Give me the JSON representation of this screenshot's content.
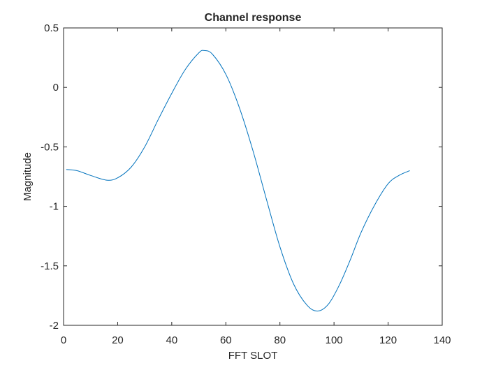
{
  "chart_data": {
    "type": "line",
    "title": "Channel response",
    "xlabel": "FFT SLOT",
    "ylabel": "Magnitude",
    "xlim": [
      0,
      140
    ],
    "ylim": [
      -2,
      0.5
    ],
    "xticks": [
      0,
      20,
      40,
      60,
      80,
      100,
      120,
      140
    ],
    "xtick_labels": [
      "0",
      "20",
      "40",
      "60",
      "80",
      "100",
      "120",
      "140"
    ],
    "yticks": [
      0.5,
      0,
      -0.5,
      -1,
      -1.5,
      -2
    ],
    "ytick_labels": [
      "0.5",
      "0",
      "-0.5",
      "-1",
      "-1.5",
      "-2"
    ],
    "grid": false,
    "line_color": "#0072BD",
    "series": [
      {
        "x": [
          1,
          5,
          10,
          16,
          20,
          25,
          30,
          35,
          40,
          45,
          50,
          52,
          55,
          60,
          65,
          70,
          75,
          80,
          85,
          90,
          94,
          98,
          102,
          106,
          110,
          115,
          120,
          124,
          128
        ],
        "y": [
          -0.69,
          -0.7,
          -0.74,
          -0.78,
          -0.76,
          -0.67,
          -0.5,
          -0.27,
          -0.05,
          0.15,
          0.29,
          0.31,
          0.28,
          0.11,
          -0.17,
          -0.53,
          -0.94,
          -1.34,
          -1.65,
          -1.83,
          -1.88,
          -1.82,
          -1.66,
          -1.45,
          -1.22,
          -0.99,
          -0.81,
          -0.74,
          -0.7
        ]
      }
    ]
  }
}
